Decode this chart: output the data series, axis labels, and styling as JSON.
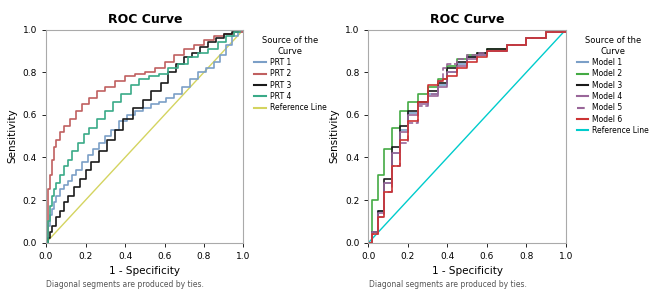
{
  "title": "ROC Curve",
  "xlabel": "1 - Specificity",
  "ylabel": "Sensitivity",
  "footnote": "Diagonal segments are produced by ties.",
  "xlim": [
    0.0,
    1.0
  ],
  "ylim": [
    0.0,
    1.0
  ],
  "xticks": [
    0.0,
    0.2,
    0.4,
    0.6,
    0.8,
    1.0
  ],
  "yticks": [
    0.0,
    0.2,
    0.4,
    0.6,
    0.8,
    1.0
  ],
  "legend_title": "Source of the\nCurve",
  "bg_color": "#f2f2f2",
  "plot1": {
    "curves": [
      {
        "label": "PRT 1",
        "color": "#7b9fc7",
        "linestyle": "-",
        "lw": 1.2,
        "x": [
          0.0,
          0.01,
          0.02,
          0.03,
          0.04,
          0.05,
          0.07,
          0.09,
          0.11,
          0.13,
          0.15,
          0.18,
          0.21,
          0.24,
          0.27,
          0.3,
          0.33,
          0.37,
          0.41,
          0.45,
          0.49,
          0.53,
          0.57,
          0.61,
          0.65,
          0.69,
          0.73,
          0.77,
          0.81,
          0.85,
          0.88,
          0.91,
          0.94,
          0.97,
          1.0
        ],
        "y": [
          0.0,
          0.08,
          0.13,
          0.16,
          0.19,
          0.22,
          0.25,
          0.27,
          0.29,
          0.32,
          0.34,
          0.38,
          0.41,
          0.44,
          0.47,
          0.5,
          0.53,
          0.57,
          0.6,
          0.62,
          0.63,
          0.65,
          0.66,
          0.68,
          0.7,
          0.73,
          0.77,
          0.8,
          0.82,
          0.85,
          0.88,
          0.93,
          0.97,
          0.99,
          1.0
        ]
      },
      {
        "label": "PRT 2",
        "color": "#c06060",
        "linestyle": "-",
        "lw": 1.2,
        "x": [
          0.0,
          0.01,
          0.02,
          0.03,
          0.04,
          0.05,
          0.07,
          0.09,
          0.12,
          0.15,
          0.18,
          0.22,
          0.26,
          0.3,
          0.35,
          0.4,
          0.45,
          0.5,
          0.55,
          0.6,
          0.65,
          0.7,
          0.75,
          0.8,
          0.85,
          0.9,
          0.95,
          1.0
        ],
        "y": [
          0.0,
          0.25,
          0.32,
          0.39,
          0.45,
          0.48,
          0.52,
          0.55,
          0.58,
          0.62,
          0.65,
          0.68,
          0.71,
          0.73,
          0.76,
          0.78,
          0.79,
          0.8,
          0.82,
          0.85,
          0.88,
          0.91,
          0.93,
          0.95,
          0.97,
          0.98,
          0.99,
          1.0
        ]
      },
      {
        "label": "PRT 3",
        "color": "#1a1a1a",
        "linestyle": "-",
        "lw": 1.2,
        "x": [
          0.0,
          0.01,
          0.02,
          0.03,
          0.05,
          0.07,
          0.09,
          0.11,
          0.14,
          0.17,
          0.2,
          0.23,
          0.27,
          0.31,
          0.35,
          0.39,
          0.44,
          0.49,
          0.53,
          0.58,
          0.62,
          0.66,
          0.7,
          0.74,
          0.78,
          0.82,
          0.86,
          0.9,
          0.94,
          0.97,
          1.0
        ],
        "y": [
          0.0,
          0.02,
          0.05,
          0.08,
          0.12,
          0.15,
          0.19,
          0.22,
          0.26,
          0.3,
          0.34,
          0.38,
          0.43,
          0.48,
          0.53,
          0.58,
          0.63,
          0.67,
          0.71,
          0.75,
          0.8,
          0.84,
          0.87,
          0.89,
          0.92,
          0.94,
          0.96,
          0.98,
          0.99,
          1.0,
          1.0
        ]
      },
      {
        "label": "PRT 4",
        "color": "#3aaa88",
        "linestyle": "-",
        "lw": 1.2,
        "x": [
          0.0,
          0.01,
          0.02,
          0.03,
          0.04,
          0.05,
          0.07,
          0.09,
          0.11,
          0.13,
          0.16,
          0.19,
          0.22,
          0.26,
          0.3,
          0.34,
          0.38,
          0.43,
          0.47,
          0.52,
          0.57,
          0.62,
          0.67,
          0.72,
          0.77,
          0.82,
          0.87,
          0.91,
          0.95,
          0.98,
          1.0
        ],
        "y": [
          0.0,
          0.1,
          0.17,
          0.22,
          0.25,
          0.28,
          0.32,
          0.36,
          0.39,
          0.43,
          0.47,
          0.51,
          0.54,
          0.58,
          0.62,
          0.66,
          0.7,
          0.74,
          0.77,
          0.78,
          0.79,
          0.82,
          0.84,
          0.87,
          0.89,
          0.91,
          0.94,
          0.97,
          0.99,
          1.0,
          1.0
        ]
      }
    ],
    "ref_color": "#d4d460",
    "ref_label": "Reference Line"
  },
  "plot2": {
    "curves": [
      {
        "label": "Model 1",
        "color": "#7b9fc7",
        "linestyle": "-",
        "lw": 1.2,
        "x": [
          0.0,
          0.02,
          0.05,
          0.08,
          0.12,
          0.16,
          0.2,
          0.25,
          0.3,
          0.35,
          0.4,
          0.45,
          0.5,
          0.55,
          0.6,
          0.7,
          0.8,
          0.9,
          1.0
        ],
        "y": [
          0.0,
          0.05,
          0.15,
          0.28,
          0.42,
          0.53,
          0.61,
          0.66,
          0.7,
          0.74,
          0.8,
          0.84,
          0.87,
          0.88,
          0.9,
          0.93,
          0.96,
          0.99,
          1.0
        ]
      },
      {
        "label": "Model 2",
        "color": "#44aa44",
        "linestyle": "-",
        "lw": 1.2,
        "x": [
          0.0,
          0.02,
          0.05,
          0.08,
          0.12,
          0.16,
          0.2,
          0.25,
          0.3,
          0.35,
          0.4,
          0.45,
          0.5,
          0.55,
          0.6,
          0.7,
          0.8,
          0.9,
          1.0
        ],
        "y": [
          0.0,
          0.2,
          0.32,
          0.44,
          0.54,
          0.62,
          0.66,
          0.7,
          0.73,
          0.77,
          0.83,
          0.86,
          0.88,
          0.89,
          0.91,
          0.93,
          0.96,
          0.99,
          1.0
        ]
      },
      {
        "label": "Model 3",
        "color": "#1a1a1a",
        "linestyle": "-",
        "lw": 1.2,
        "x": [
          0.0,
          0.02,
          0.05,
          0.08,
          0.12,
          0.16,
          0.2,
          0.25,
          0.3,
          0.35,
          0.4,
          0.45,
          0.5,
          0.55,
          0.6,
          0.7,
          0.8,
          0.9,
          1.0
        ],
        "y": [
          0.0,
          0.05,
          0.15,
          0.3,
          0.45,
          0.55,
          0.62,
          0.66,
          0.71,
          0.75,
          0.82,
          0.85,
          0.87,
          0.89,
          0.91,
          0.93,
          0.96,
          0.99,
          1.0
        ]
      },
      {
        "label": "Model 4",
        "color": "#996699",
        "linestyle": "-",
        "lw": 1.2,
        "x": [
          0.0,
          0.02,
          0.05,
          0.08,
          0.12,
          0.16,
          0.2,
          0.25,
          0.3,
          0.35,
          0.4,
          0.45,
          0.5,
          0.55,
          0.6,
          0.7,
          0.8,
          0.9,
          1.0
        ],
        "y": [
          0.0,
          0.05,
          0.14,
          0.28,
          0.42,
          0.52,
          0.6,
          0.65,
          0.69,
          0.73,
          0.8,
          0.83,
          0.86,
          0.88,
          0.9,
          0.93,
          0.96,
          0.99,
          1.0
        ]
      },
      {
        "label": "Model 5",
        "color": "#996699",
        "linestyle": "--",
        "lw": 1.2,
        "x": [
          0.0,
          0.02,
          0.05,
          0.08,
          0.12,
          0.16,
          0.2,
          0.25,
          0.3,
          0.35,
          0.38,
          0.4,
          0.45,
          0.5,
          0.55,
          0.6,
          0.7,
          0.8,
          0.9,
          1.0
        ],
        "y": [
          0.0,
          0.04,
          0.12,
          0.24,
          0.36,
          0.47,
          0.56,
          0.64,
          0.7,
          0.76,
          0.82,
          0.84,
          0.86,
          0.88,
          0.89,
          0.9,
          0.93,
          0.96,
          0.99,
          1.0
        ]
      },
      {
        "label": "Model 6",
        "color": "#cc3333",
        "linestyle": "-",
        "lw": 1.2,
        "x": [
          0.0,
          0.02,
          0.05,
          0.08,
          0.12,
          0.16,
          0.2,
          0.25,
          0.3,
          0.35,
          0.38,
          0.4,
          0.45,
          0.5,
          0.55,
          0.6,
          0.7,
          0.8,
          0.9,
          1.0
        ],
        "y": [
          0.0,
          0.04,
          0.12,
          0.24,
          0.36,
          0.48,
          0.57,
          0.66,
          0.74,
          0.76,
          0.77,
          0.78,
          0.82,
          0.85,
          0.87,
          0.9,
          0.93,
          0.96,
          0.99,
          1.0
        ]
      }
    ],
    "ref_color": "#00cccc",
    "ref_label": "Reference Line"
  }
}
